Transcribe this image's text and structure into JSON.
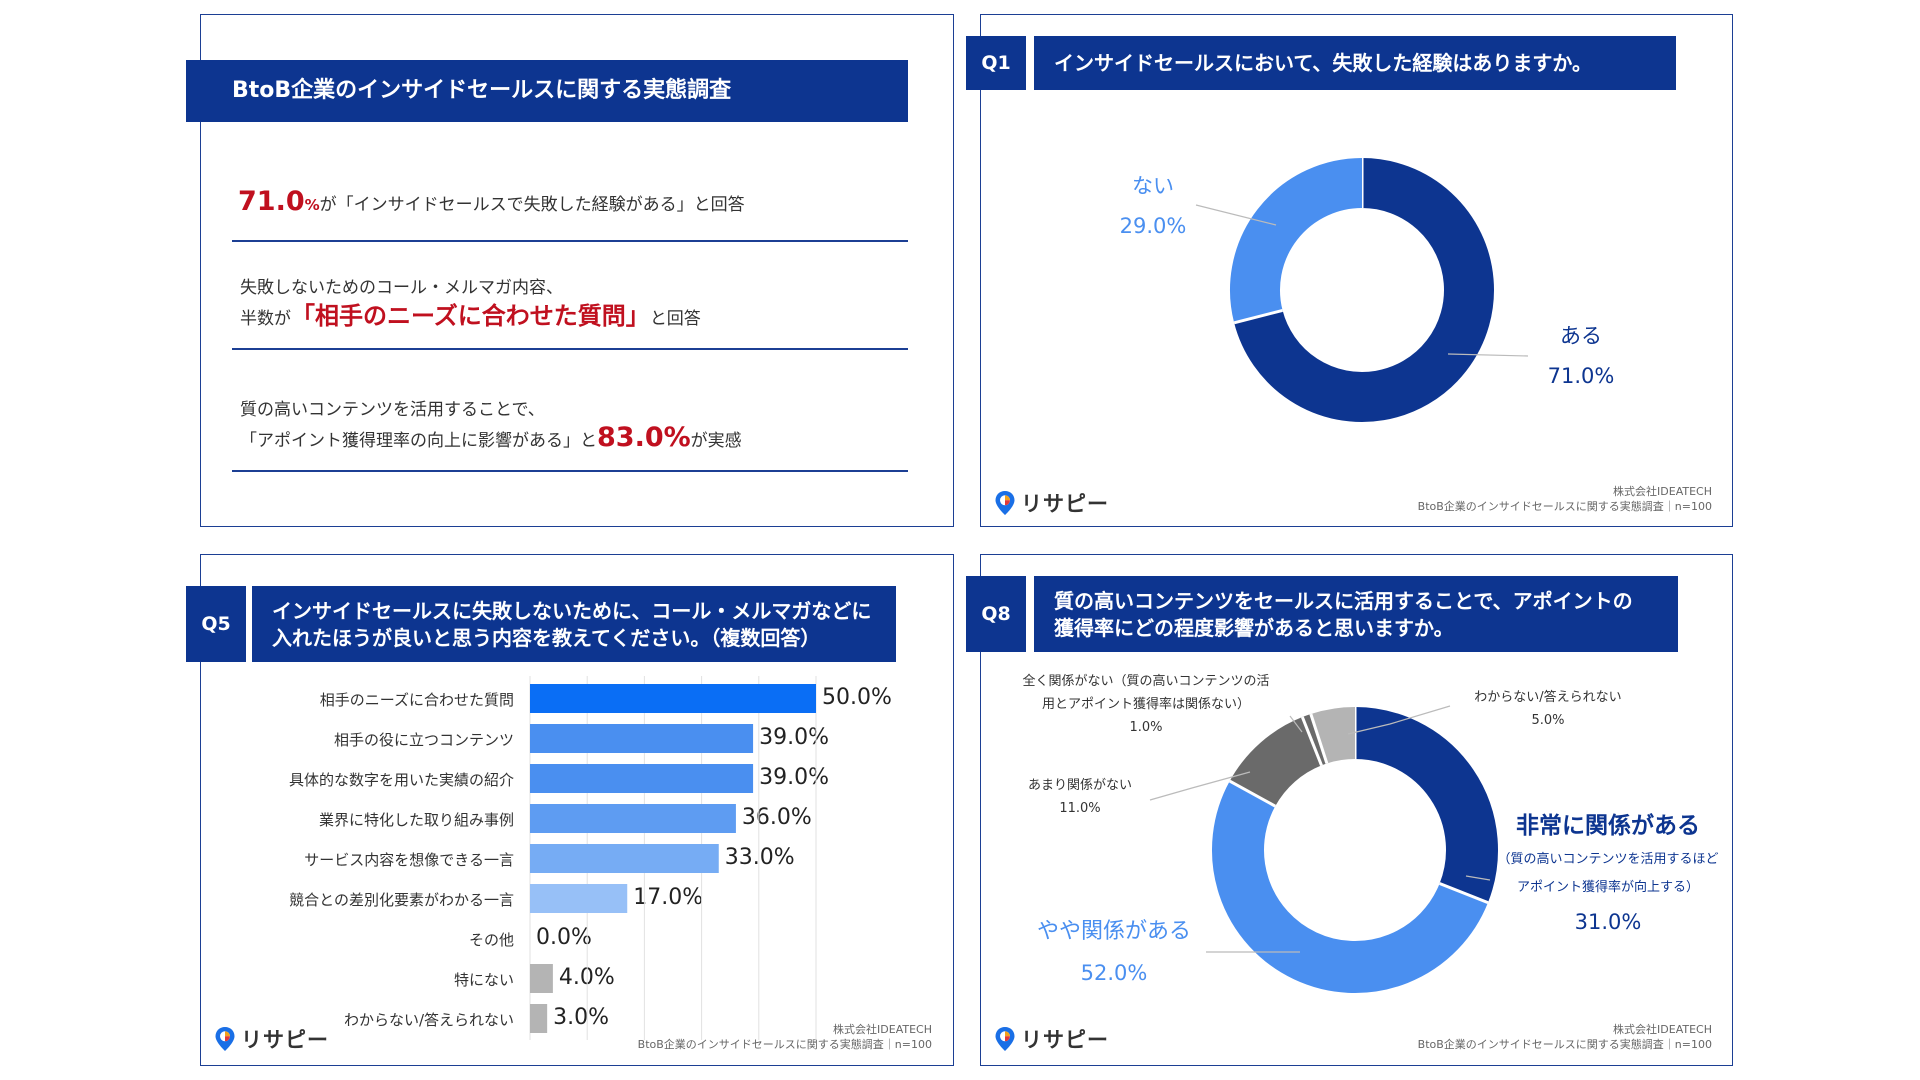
{
  "summary": {
    "title": "BtoB企業のインサイドセールスに関する実態調査",
    "item1": {
      "value": "71.0",
      "unit": "%",
      "text": "が「インサイドセールスで失敗した経験がある」と回答"
    },
    "item2": {
      "line1": "失敗しないためのコール・メルマガ内容、",
      "prefix": "半数が",
      "highlight": "「相手のニーズに合わせた質問」",
      "suffix": "と回答"
    },
    "item3": {
      "line1": "質の高いコンテンツを活用することで、",
      "prefix": "「アポイント獲得理率の向上に影響がある」と",
      "highlight": "83.0%",
      "suffix": "が実感"
    }
  },
  "credit": {
    "company": "株式会社IDEATECH",
    "survey": "BtoB企業のインサイドセールスに関する実態調査｜n=100"
  },
  "logo": {
    "text": "リサピー"
  },
  "colors": {
    "navy": "#0d3590",
    "blue": "#4a8ff0",
    "gray": "#6a6a6a",
    "lightgray": "#b4b4b4",
    "red": "#c0101f"
  },
  "q1": {
    "tag": "Q1",
    "question": "インサイドセールスにおいて、失敗した経験はありますか。",
    "chart_data": {
      "type": "pie",
      "labels": [
        "ある",
        "ない"
      ],
      "values": [
        71.0,
        29.0
      ],
      "value_labels": [
        "71.0%",
        "29.0%"
      ],
      "colors": [
        "#0d3590",
        "#4a8ff0"
      ]
    }
  },
  "q5": {
    "tag": "Q5",
    "question_line1": "インサイドセールスに失敗しないために、コール・メルマガなどに",
    "question_line2": "入れたほうが良いと思う内容を教えてください。（複数回答）",
    "chart_data": {
      "type": "bar",
      "orientation": "horizontal",
      "categories": [
        "相手のニーズに合わせた質問",
        "相手の役に立つコンテンツ",
        "具体的な数字を用いた実績の紹介",
        "業界に特化した取り組み事例",
        "サービス内容を想像できる一言",
        "競合との差別化要素がわかる一言",
        "その他",
        "特にない",
        "わからない/答えられない"
      ],
      "values": [
        50.0,
        39.0,
        39.0,
        36.0,
        33.0,
        17.0,
        0.0,
        4.0,
        3.0
      ],
      "value_labels": [
        "50.0%",
        "39.0%",
        "39.0%",
        "36.0%",
        "33.0%",
        "17.0%",
        "0.0%",
        "4.0%",
        "3.0%"
      ],
      "colors": [
        "#0a6ef5",
        "#4a8ff0",
        "#4a8ff0",
        "#5e9cf2",
        "#76acf4",
        "#97c0f7",
        "#b4b4b4",
        "#b4b4b4",
        "#b4b4b4"
      ],
      "xlim": [
        0,
        50
      ]
    }
  },
  "q8": {
    "tag": "Q8",
    "question_line1": "質の高いコンテンツをセールスに活用することで、アポイントの",
    "question_line2": "獲得率にどの程度影響があると思いますか。",
    "chart_data": {
      "type": "pie",
      "labels": [
        "非常に関係がある",
        "やや関係がある",
        "あまり関係がない",
        "全く関係がない",
        "わからない/答えられない"
      ],
      "label_notes": [
        "（質の高いコンテンツを活用するほど",
        "アポイント獲得率が向上する）"
      ],
      "label_note_none": [
        "全く関係がない（質の高いコンテンツの活",
        "用とアポイント獲得率は関係ない）"
      ],
      "values": [
        31.0,
        52.0,
        11.0,
        1.0,
        5.0
      ],
      "value_labels": [
        "31.0%",
        "52.0%",
        "11.0%",
        "1.0%",
        "5.0%"
      ],
      "colors": [
        "#0d3590",
        "#4a8ff0",
        "#6a6a6a",
        "#6a6a6a",
        "#b4b4b4"
      ]
    }
  }
}
